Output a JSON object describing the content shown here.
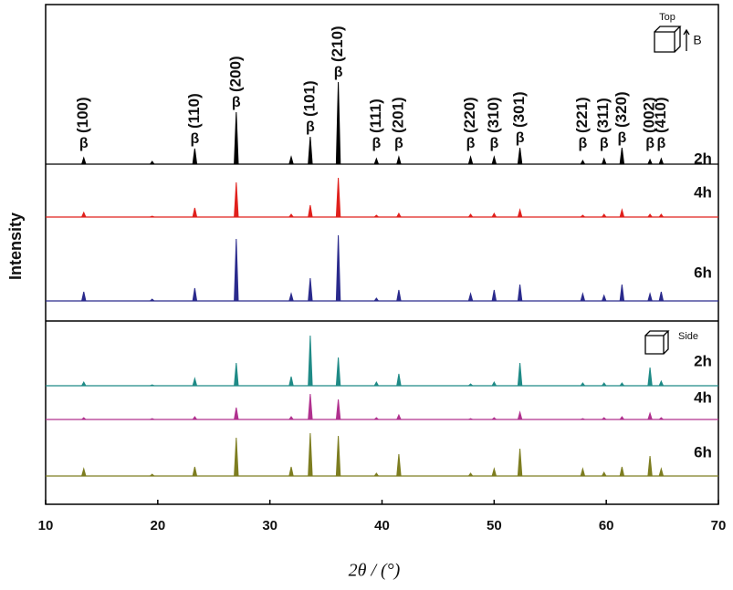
{
  "chart_data": {
    "type": "stick",
    "xlabel": "2θ / (°)",
    "ylabel": "Intensity",
    "xlim": [
      10,
      70
    ],
    "xticks": [
      10,
      20,
      30,
      40,
      50,
      60,
      70
    ],
    "x": [
      13.4,
      19.5,
      23.3,
      27.0,
      31.9,
      33.6,
      36.1,
      39.5,
      41.5,
      47.9,
      50.0,
      52.3,
      57.9,
      59.8,
      61.4,
      63.9,
      64.9
    ],
    "annotations": [
      {
        "x": 13.4,
        "phase": "β",
        "label": "(100)"
      },
      {
        "x": 23.3,
        "phase": "β",
        "label": "(110)"
      },
      {
        "x": 27.0,
        "phase": "β",
        "label": "(200)"
      },
      {
        "x": 33.6,
        "phase": "β",
        "label": "(101)"
      },
      {
        "x": 36.1,
        "phase": "β",
        "label": "(210)"
      },
      {
        "x": 39.5,
        "phase": "β",
        "label": "(111)"
      },
      {
        "x": 41.5,
        "phase": "β",
        "label": "(201)"
      },
      {
        "x": 47.9,
        "phase": "β",
        "label": "(220)"
      },
      {
        "x": 50.0,
        "phase": "β",
        "label": "(310)"
      },
      {
        "x": 52.3,
        "phase": "β",
        "label": "(301)"
      },
      {
        "x": 57.9,
        "phase": "β",
        "label": "(221)"
      },
      {
        "x": 59.8,
        "phase": "β",
        "label": "(311)"
      },
      {
        "x": 61.4,
        "phase": "β",
        "label": "(320)"
      },
      {
        "x": 63.9,
        "phase": "β",
        "label": "(002)"
      },
      {
        "x": 64.9,
        "phase": "β",
        "label": "(410)"
      }
    ],
    "panels": [
      {
        "label": "Top",
        "field_label": "B",
        "series": [
          {
            "name": "2h",
            "color": "#000000",
            "values": [
              7,
              3,
              17,
              57,
              8,
              30,
              90,
              6,
              8,
              8,
              8,
              18,
              4,
              6,
              18,
              5,
              6
            ]
          },
          {
            "name": "4h",
            "color": "#e0201c",
            "values": [
              5,
              1,
              10,
              38,
              3,
              13,
              43,
              2,
              4,
              3,
              4,
              8,
              2,
              3,
              8,
              3,
              3
            ]
          },
          {
            "name": "6h",
            "color": "#2a2a8c",
            "values": [
              10,
              2,
              14,
              68,
              8,
              25,
              72,
              3,
              12,
              8,
              12,
              18,
              8,
              6,
              18,
              8,
              10
            ]
          }
        ]
      },
      {
        "label": "Side",
        "series": [
          {
            "name": "2h",
            "color": "#1f8a86",
            "values": [
              4,
              1,
              8,
              25,
              10,
              55,
              31,
              4,
              13,
              2,
              4,
              25,
              3,
              3,
              3,
              20,
              5
            ]
          },
          {
            "name": "4h",
            "color": "#b0308e",
            "values": [
              2,
              1,
              3,
              13,
              3,
              28,
              22,
              2,
              5,
              1,
              2,
              8,
              1,
              2,
              3,
              7,
              2
            ]
          },
          {
            "name": "6h",
            "color": "#7d7d20",
            "values": [
              8,
              2,
              10,
              42,
              10,
              47,
              44,
              3,
              24,
              3,
              8,
              30,
              8,
              4,
              10,
              22,
              8
            ]
          }
        ]
      }
    ]
  }
}
